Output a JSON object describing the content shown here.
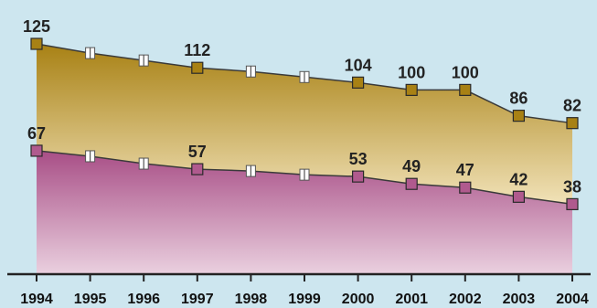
{
  "chart_data": {
    "type": "area",
    "title": "",
    "xlabel": "",
    "ylabel": "",
    "x": [
      "1994",
      "1995",
      "1996",
      "1997",
      "1998",
      "1999",
      "2000",
      "2001",
      "2002",
      "2003",
      "2004"
    ],
    "ylim": [
      0,
      140
    ],
    "grid": false,
    "legend": "none",
    "series": [
      {
        "values": [
          125,
          120,
          116,
          112,
          110,
          107,
          104,
          100,
          100,
          86,
          82
        ],
        "labeled": [
          true,
          false,
          false,
          true,
          false,
          false,
          true,
          true,
          true,
          true,
          true
        ],
        "fill_top": "#a88114",
        "fill_bottom": "#f1e2b8",
        "line": "#3a3a3a",
        "marker": "#a88114"
      },
      {
        "values": [
          67,
          64,
          60,
          57,
          56,
          54,
          53,
          49,
          47,
          42,
          38
        ],
        "labeled": [
          true,
          false,
          false,
          true,
          false,
          false,
          true,
          true,
          true,
          true,
          true
        ],
        "fill_top": "#a84e86",
        "fill_bottom": "#ead0df",
        "line": "#3a3a3a",
        "marker": "#b05a8e"
      }
    ]
  },
  "colors": {
    "background": "#cde6ef",
    "axis": "#222222"
  }
}
